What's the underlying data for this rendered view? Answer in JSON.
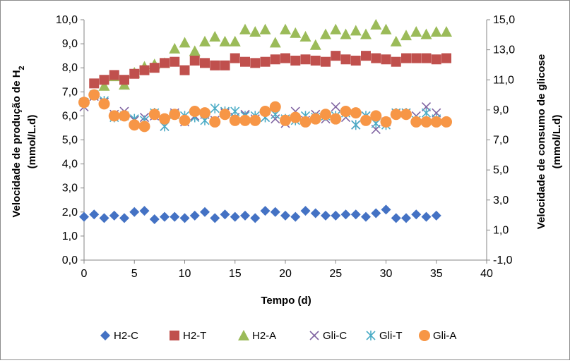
{
  "colors": {
    "H2-C": "#4472c4",
    "H2-T": "#c0504d",
    "H2-A": "#9bbb59",
    "Gli-C": "#8064a2",
    "Gli-T": "#4bacc6",
    "Gli-A": "#f79646"
  },
  "chart_data": {
    "type": "scatter",
    "xlabel": "Tempo (d)",
    "ylabel_main": "Velocidade de produção de H",
    "ylabel_sub": "2",
    "ylabel_units": "(mmol/L.d)",
    "y2label_main": "Velocidade de consumo de glicose",
    "y2label_units": "(mmol/L.d)",
    "xlim": [
      0,
      40
    ],
    "ylim": [
      0,
      10
    ],
    "y2lim": [
      -1,
      15
    ],
    "xticks": [
      "0",
      "5",
      "10",
      "15",
      "20",
      "25",
      "30",
      "35",
      "40"
    ],
    "yticks": [
      "0,0",
      "1,0",
      "2,0",
      "3,0",
      "4,0",
      "5,0",
      "6,0",
      "7,0",
      "8,0",
      "9,0",
      "10,0"
    ],
    "y2ticks": [
      "-1,0",
      "1,0",
      "3,0",
      "5,0",
      "7,0",
      "9,0",
      "11,0",
      "13,0",
      "15,0"
    ],
    "grid": false,
    "legend": "bottom",
    "series": [
      {
        "name": "H2-C",
        "axis": "left",
        "marker": "diamond",
        "x": [
          0,
          1,
          2,
          3,
          4,
          5,
          6,
          7,
          8,
          9,
          10,
          11,
          12,
          13,
          14,
          15,
          16,
          17,
          18,
          19,
          20,
          21,
          22,
          23,
          24,
          25,
          26,
          27,
          28,
          29,
          30,
          31,
          32,
          33,
          34,
          35
        ],
        "y": [
          1.8,
          1.9,
          1.75,
          1.85,
          1.75,
          2.0,
          2.05,
          1.7,
          1.8,
          1.8,
          1.75,
          1.85,
          2.0,
          1.75,
          1.9,
          1.8,
          1.85,
          1.75,
          2.05,
          2.0,
          1.85,
          1.8,
          2.05,
          1.95,
          1.85,
          1.85,
          1.9,
          1.9,
          1.8,
          1.95,
          2.1,
          1.75,
          1.75,
          1.9,
          1.8,
          1.85
        ]
      },
      {
        "name": "H2-T",
        "axis": "left",
        "marker": "square",
        "x": [
          1,
          2,
          3,
          4,
          5,
          6,
          7,
          8,
          9,
          10,
          11,
          12,
          13,
          14,
          15,
          16,
          17,
          18,
          19,
          20,
          21,
          22,
          23,
          24,
          25,
          26,
          27,
          28,
          29,
          30,
          31,
          32,
          33,
          34,
          35,
          36
        ],
        "y": [
          7.35,
          7.5,
          7.7,
          7.5,
          7.75,
          7.9,
          8.0,
          8.2,
          8.25,
          7.9,
          8.3,
          8.2,
          8.1,
          8.1,
          8.4,
          8.25,
          8.2,
          8.25,
          8.35,
          8.4,
          8.3,
          8.35,
          8.3,
          8.25,
          8.5,
          8.35,
          8.3,
          8.5,
          8.4,
          8.35,
          8.25,
          8.4,
          8.4,
          8.4,
          8.35,
          8.4
        ]
      },
      {
        "name": "H2-A",
        "axis": "left",
        "marker": "triangle",
        "x": [
          2,
          3,
          4,
          5,
          6,
          7,
          8,
          9,
          10,
          11,
          12,
          13,
          14,
          15,
          16,
          17,
          18,
          19,
          20,
          21,
          22,
          23,
          24,
          25,
          26,
          27,
          28,
          29,
          30,
          31,
          32,
          33,
          34,
          35,
          36
        ],
        "y": [
          7.25,
          7.65,
          7.3,
          7.8,
          8.05,
          8.15,
          8.2,
          8.8,
          9.05,
          8.7,
          9.1,
          9.3,
          9.1,
          9.1,
          9.6,
          9.5,
          9.6,
          9.05,
          9.6,
          9.45,
          9.3,
          8.95,
          9.4,
          9.6,
          9.4,
          9.55,
          9.4,
          9.8,
          9.6,
          9.1,
          9.35,
          9.5,
          9.4,
          9.5,
          9.5
        ]
      },
      {
        "name": "Gli-C",
        "axis": "right",
        "marker": "x",
        "x": [
          0,
          1,
          2,
          3,
          4,
          5,
          6,
          7,
          8,
          9,
          10,
          11,
          12,
          13,
          14,
          15,
          16,
          17,
          18,
          19,
          20,
          21,
          22,
          23,
          24,
          25,
          26,
          27,
          28,
          29,
          30,
          31,
          32,
          33,
          34,
          35
        ],
        "y": [
          9.2,
          9.9,
          9.5,
          8.7,
          8.9,
          8.3,
          8.5,
          8.6,
          7.9,
          8.8,
          8.2,
          8.6,
          8.7,
          8.3,
          8.8,
          8.5,
          8.7,
          8.4,
          8.5,
          8.4,
          8.1,
          8.9,
          8.3,
          8.7,
          8.4,
          9.2,
          8.5,
          8.0,
          8.6,
          7.7,
          8.2,
          8.8,
          8.8,
          8.6,
          9.2,
          8.8
        ]
      },
      {
        "name": "Gli-T",
        "axis": "right",
        "marker": "star",
        "x": [
          0,
          1,
          2,
          3,
          4,
          5,
          6,
          7,
          8,
          9,
          10,
          11,
          12,
          13,
          14,
          15,
          16,
          17,
          18,
          19,
          20,
          21,
          22,
          23,
          24,
          25,
          26,
          27,
          28,
          29,
          30,
          31,
          32,
          33,
          34,
          35
        ],
        "y": [
          9.5,
          10.0,
          9.6,
          8.5,
          8.6,
          8.4,
          8.3,
          8.8,
          7.9,
          8.7,
          8.6,
          8.5,
          8.3,
          9.1,
          8.9,
          8.9,
          8.6,
          8.6,
          8.5,
          8.7,
          8.4,
          8.3,
          8.6,
          8.5,
          8.6,
          8.6,
          8.8,
          8.0,
          8.6,
          8.1,
          8.0,
          8.8,
          8.8,
          8.3,
          8.8,
          8.4
        ]
      },
      {
        "name": "Gli-A",
        "axis": "right",
        "marker": "circle",
        "x": [
          0,
          1,
          2,
          3,
          4,
          5,
          6,
          7,
          8,
          9,
          10,
          11,
          12,
          13,
          14,
          15,
          16,
          17,
          18,
          19,
          20,
          21,
          22,
          23,
          24,
          25,
          26,
          27,
          28,
          29,
          30,
          31,
          32,
          33,
          34,
          35,
          36
        ],
        "y": [
          9.5,
          10.0,
          9.4,
          8.6,
          8.6,
          8.0,
          7.9,
          8.7,
          8.4,
          8.7,
          8.3,
          8.9,
          8.8,
          8.2,
          8.7,
          8.3,
          8.3,
          8.3,
          8.9,
          9.2,
          8.3,
          8.5,
          8.2,
          8.4,
          8.7,
          8.4,
          8.9,
          8.8,
          8.3,
          8.6,
          8.2,
          8.7,
          8.7,
          8.2,
          8.2,
          8.2,
          8.2
        ]
      }
    ]
  }
}
